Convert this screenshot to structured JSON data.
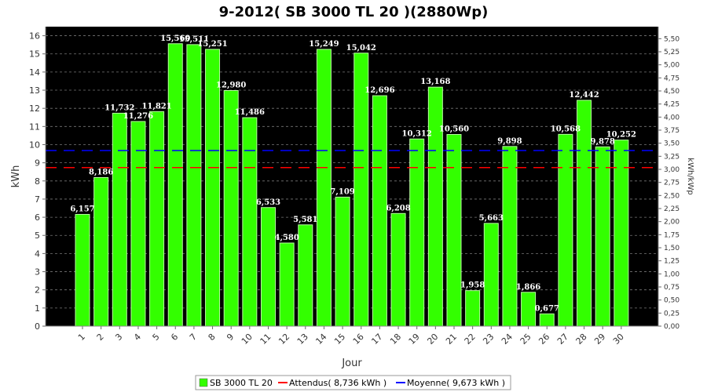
{
  "chart_data": {
    "type": "bar",
    "title": "9-2012( SB 3000 TL 20 )(2880Wp)",
    "xlabel": "Jour",
    "ylabel": "kWh",
    "ylabel_right": "kWh/kWp",
    "ylim": [
      0,
      16.5
    ],
    "ylim_right": [
      0,
      5.73
    ],
    "yticks": [
      0,
      1,
      2,
      3,
      4,
      5,
      6,
      7,
      8,
      9,
      10,
      11,
      12,
      13,
      14,
      15,
      16
    ],
    "yticks_right": [
      "0,00",
      "0,25",
      "0,50",
      "0,75",
      "1,00",
      "1,25",
      "1,50",
      "1,75",
      "2,00",
      "2,25",
      "2,50",
      "2,75",
      "3,00",
      "3,25",
      "3,50",
      "3,75",
      "4,00",
      "4,25",
      "4,50",
      "4,75",
      "5,00",
      "5,25",
      "5,50"
    ],
    "categories": [
      "1",
      "2",
      "3",
      "4",
      "5",
      "6",
      "7",
      "8",
      "9",
      "10",
      "11",
      "12",
      "13",
      "14",
      "15",
      "16",
      "17",
      "18",
      "19",
      "20",
      "21",
      "22",
      "23",
      "24",
      "25",
      "26",
      "27",
      "28",
      "29",
      "30"
    ],
    "values": [
      6.157,
      8.186,
      11.732,
      11.276,
      11.821,
      15.56,
      15.511,
      15.251,
      12.98,
      11.486,
      6.533,
      4.58,
      5.581,
      15.249,
      7.109,
      15.042,
      12.696,
      6.208,
      10.312,
      13.168,
      10.56,
      1.958,
      5.663,
      9.898,
      1.866,
      0.677,
      10.568,
      12.442,
      9.878,
      10.252
    ],
    "value_labels": [
      "6,157",
      "8,186",
      "11,732",
      "11,276",
      "11,821",
      "15,560",
      "15,511",
      "15,251",
      "12,980",
      "11,486",
      "6,533",
      "4,580",
      "5,581",
      "15,249",
      "7,109",
      "15,042",
      "12,696",
      "6,208",
      "10,312",
      "13,168",
      "10,560",
      "1,958",
      "5,663",
      "9,898",
      "1,866",
      "0,677",
      "10,568",
      "12,442",
      "9,878",
      "10,252"
    ],
    "reference_lines": [
      {
        "name": "Attendus( 8,736 kWh )",
        "value": 8.736,
        "color": "#ff0000"
      },
      {
        "name": "Moyenne( 9,673 kWh )",
        "value": 9.673,
        "color": "#0000ff"
      }
    ],
    "series_name": "SB 3000 TL 20",
    "colors": {
      "bar": "#33ff00",
      "background": "#000000",
      "grid": "#777777"
    },
    "grid": true,
    "legend_position": "bottom"
  }
}
